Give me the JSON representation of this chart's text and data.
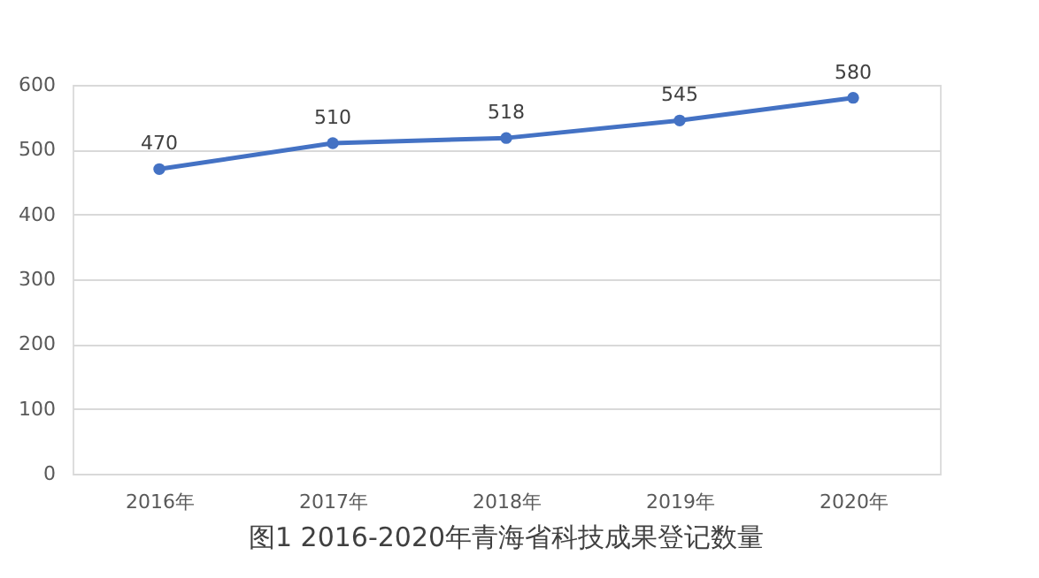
{
  "chart_data": {
    "type": "line",
    "title": "图1  2016-2020年青海省科技成果登记数量",
    "categories": [
      "2016年",
      "2017年",
      "2018年",
      "2019年",
      "2020年"
    ],
    "series": [
      {
        "color": "#4472c4",
        "values": [
          470,
          510,
          518,
          545,
          580
        ]
      }
    ],
    "ylim": [
      0,
      600
    ],
    "yticks": [
      0,
      100,
      200,
      300,
      400,
      500,
      600
    ],
    "grid": "y",
    "legend": false,
    "marker": "circle",
    "line_style": "solid",
    "data_labels": true
  }
}
